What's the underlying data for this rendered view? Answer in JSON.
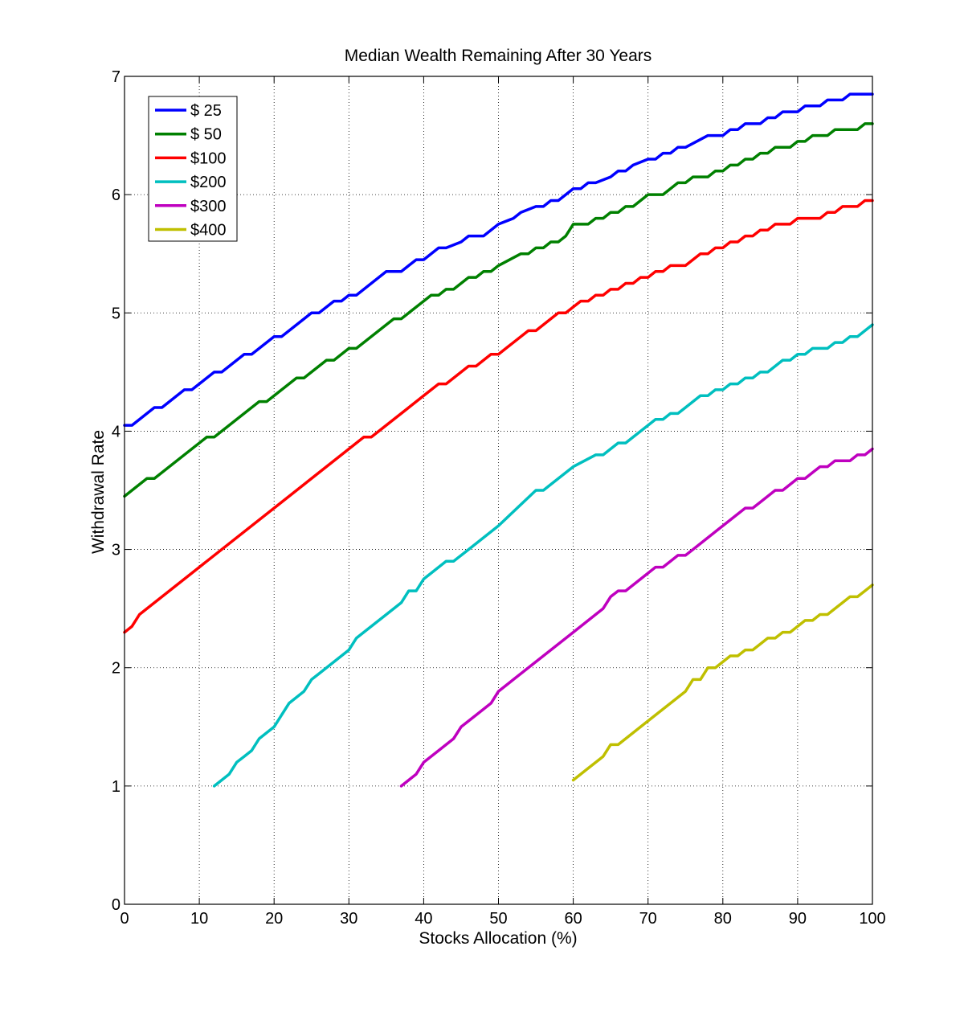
{
  "chart_data": {
    "type": "line",
    "title": "Median Wealth Remaining After 30 Years",
    "xlabel": "Stocks Allocation (%)",
    "ylabel": "Withdrawal Rate",
    "xlim": [
      0,
      100
    ],
    "ylim": [
      0,
      7
    ],
    "xticks": [
      "0",
      "10",
      "20",
      "30",
      "40",
      "50",
      "60",
      "70",
      "80",
      "90",
      "100"
    ],
    "yticks": [
      "0",
      "1",
      "2",
      "3",
      "4",
      "5",
      "6",
      "7"
    ],
    "grid": true,
    "legend_position": "top-left",
    "series": [
      {
        "name": "$ 25",
        "color": "#0000ff",
        "x": [
          0,
          1,
          2,
          4,
          5,
          8,
          9,
          12,
          13,
          16,
          17,
          20,
          21,
          25,
          26,
          28,
          29,
          30,
          31,
          35,
          36,
          37,
          38,
          39,
          40,
          42,
          43,
          45,
          46,
          48,
          49,
          50,
          52,
          53,
          55,
          56,
          57,
          58,
          60,
          61,
          62,
          63,
          65,
          66,
          67,
          68,
          70,
          71,
          72,
          73,
          74,
          75,
          78,
          80,
          81,
          82,
          83,
          85,
          86,
          87,
          88,
          89,
          90,
          91,
          92,
          93,
          94,
          95,
          96,
          97,
          98,
          100
        ],
        "y": [
          4.05,
          4.05,
          4.1,
          4.2,
          4.2,
          4.35,
          4.35,
          4.5,
          4.5,
          4.65,
          4.65,
          4.8,
          4.8,
          5.0,
          5.0,
          5.1,
          5.1,
          5.15,
          5.15,
          5.35,
          5.35,
          5.35,
          5.4,
          5.45,
          5.45,
          5.55,
          5.55,
          5.6,
          5.65,
          5.65,
          5.7,
          5.75,
          5.8,
          5.85,
          5.9,
          5.9,
          5.95,
          5.95,
          6.05,
          6.05,
          6.1,
          6.1,
          6.15,
          6.2,
          6.2,
          6.25,
          6.3,
          6.3,
          6.35,
          6.35,
          6.4,
          6.4,
          6.5,
          6.5,
          6.55,
          6.55,
          6.6,
          6.6,
          6.65,
          6.65,
          6.7,
          6.7,
          6.7,
          6.75,
          6.75,
          6.75,
          6.8,
          6.8,
          6.8,
          6.85,
          6.85,
          6.85
        ]
      },
      {
        "name": "$ 50",
        "color": "#008000",
        "x": [
          0,
          3,
          4,
          11,
          12,
          18,
          19,
          23,
          24,
          27,
          28,
          30,
          31,
          36,
          37,
          40,
          41,
          42,
          43,
          44,
          46,
          47,
          48,
          49,
          50,
          53,
          54,
          55,
          56,
          57,
          58,
          59,
          60,
          62,
          63,
          64,
          65,
          66,
          67,
          68,
          70,
          72,
          73,
          74,
          75,
          76,
          77,
          78,
          79,
          80,
          81,
          82,
          83,
          84,
          85,
          86,
          87,
          88,
          89,
          90,
          91,
          92,
          93,
          94,
          95,
          96,
          97,
          98,
          99,
          100
        ],
        "y": [
          3.45,
          3.6,
          3.6,
          3.95,
          3.95,
          4.25,
          4.25,
          4.45,
          4.45,
          4.6,
          4.6,
          4.7,
          4.7,
          4.95,
          4.95,
          5.1,
          5.15,
          5.15,
          5.2,
          5.2,
          5.3,
          5.3,
          5.35,
          5.35,
          5.4,
          5.5,
          5.5,
          5.55,
          5.55,
          5.6,
          5.6,
          5.65,
          5.75,
          5.75,
          5.8,
          5.8,
          5.85,
          5.85,
          5.9,
          5.9,
          6.0,
          6.0,
          6.05,
          6.1,
          6.1,
          6.15,
          6.15,
          6.15,
          6.2,
          6.2,
          6.25,
          6.25,
          6.3,
          6.3,
          6.35,
          6.35,
          6.4,
          6.4,
          6.4,
          6.45,
          6.45,
          6.5,
          6.5,
          6.5,
          6.55,
          6.55,
          6.55,
          6.55,
          6.6,
          6.6
        ]
      },
      {
        "name": "$100",
        "color": "#ff0000",
        "x": [
          0,
          1,
          2,
          10,
          20,
          30,
          32,
          33,
          40,
          42,
          43,
          46,
          47,
          49,
          50,
          51,
          54,
          55,
          56,
          58,
          59,
          60,
          61,
          62,
          63,
          64,
          65,
          66,
          67,
          68,
          69,
          70,
          71,
          72,
          73,
          75,
          77,
          78,
          79,
          80,
          81,
          82,
          83,
          84,
          85,
          86,
          87,
          88,
          89,
          90,
          91,
          92,
          93,
          94,
          95,
          96,
          97,
          98,
          99,
          100
        ],
        "y": [
          2.3,
          2.35,
          2.45,
          2.85,
          3.35,
          3.85,
          3.95,
          3.95,
          4.3,
          4.4,
          4.4,
          4.55,
          4.55,
          4.65,
          4.65,
          4.7,
          4.85,
          4.85,
          4.9,
          5.0,
          5.0,
          5.05,
          5.1,
          5.1,
          5.15,
          5.15,
          5.2,
          5.2,
          5.25,
          5.25,
          5.3,
          5.3,
          5.35,
          5.35,
          5.4,
          5.4,
          5.5,
          5.5,
          5.55,
          5.55,
          5.6,
          5.6,
          5.65,
          5.65,
          5.7,
          5.7,
          5.75,
          5.75,
          5.75,
          5.8,
          5.8,
          5.8,
          5.8,
          5.85,
          5.85,
          5.9,
          5.9,
          5.9,
          5.95,
          5.95
        ]
      },
      {
        "name": "$200",
        "color": "#00bfbf",
        "x": [
          12,
          13,
          14,
          15,
          16,
          17,
          18,
          19,
          20,
          21,
          22,
          23,
          24,
          25,
          26,
          28,
          30,
          31,
          34,
          37,
          38,
          39,
          40,
          41,
          43,
          44,
          46,
          48,
          50,
          55,
          56,
          57,
          60,
          63,
          64,
          65,
          66,
          67,
          68,
          70,
          71,
          72,
          73,
          74,
          75,
          76,
          77,
          78,
          79,
          80,
          81,
          82,
          83,
          84,
          85,
          86,
          87,
          88,
          89,
          90,
          91,
          92,
          93,
          94,
          95,
          96,
          97,
          98,
          99,
          100
        ],
        "y": [
          1.0,
          1.05,
          1.1,
          1.2,
          1.25,
          1.3,
          1.4,
          1.45,
          1.5,
          1.6,
          1.7,
          1.75,
          1.8,
          1.9,
          1.95,
          2.05,
          2.15,
          2.25,
          2.4,
          2.55,
          2.65,
          2.65,
          2.75,
          2.8,
          2.9,
          2.9,
          3.0,
          3.1,
          3.2,
          3.5,
          3.5,
          3.55,
          3.7,
          3.8,
          3.8,
          3.85,
          3.9,
          3.9,
          3.95,
          4.05,
          4.1,
          4.1,
          4.15,
          4.15,
          4.2,
          4.25,
          4.3,
          4.3,
          4.35,
          4.35,
          4.4,
          4.4,
          4.45,
          4.45,
          4.5,
          4.5,
          4.55,
          4.6,
          4.6,
          4.65,
          4.65,
          4.7,
          4.7,
          4.7,
          4.75,
          4.75,
          4.8,
          4.8,
          4.85,
          4.9
        ]
      },
      {
        "name": "$300",
        "color": "#bf00bf",
        "x": [
          37,
          38,
          39,
          40,
          42,
          44,
          45,
          47,
          48,
          49,
          50,
          52,
          60,
          64,
          65,
          66,
          67,
          70,
          71,
          72,
          73,
          74,
          75,
          76,
          80,
          83,
          84,
          85,
          86,
          87,
          88,
          89,
          90,
          91,
          92,
          93,
          94,
          95,
          96,
          97,
          98,
          99,
          100
        ],
        "y": [
          1.0,
          1.05,
          1.1,
          1.2,
          1.3,
          1.4,
          1.5,
          1.6,
          1.65,
          1.7,
          1.8,
          1.9,
          2.3,
          2.5,
          2.6,
          2.65,
          2.65,
          2.8,
          2.85,
          2.85,
          2.9,
          2.95,
          2.95,
          3.0,
          3.2,
          3.35,
          3.35,
          3.4,
          3.45,
          3.5,
          3.5,
          3.55,
          3.6,
          3.6,
          3.65,
          3.7,
          3.7,
          3.75,
          3.75,
          3.75,
          3.8,
          3.8,
          3.85
        ]
      },
      {
        "name": "$400",
        "color": "#bfbf00",
        "x": [
          60,
          62,
          64,
          65,
          66,
          67,
          70,
          75,
          76,
          77,
          78,
          79,
          80,
          81,
          82,
          83,
          84,
          85,
          86,
          87,
          88,
          89,
          90,
          91,
          92,
          93,
          94,
          95,
          96,
          97,
          98,
          99,
          100
        ],
        "y": [
          1.05,
          1.15,
          1.25,
          1.35,
          1.35,
          1.4,
          1.55,
          1.8,
          1.9,
          1.9,
          2.0,
          2.0,
          2.05,
          2.1,
          2.1,
          2.15,
          2.15,
          2.2,
          2.25,
          2.25,
          2.3,
          2.3,
          2.35,
          2.4,
          2.4,
          2.45,
          2.45,
          2.5,
          2.55,
          2.6,
          2.6,
          2.65,
          2.7
        ]
      }
    ]
  }
}
